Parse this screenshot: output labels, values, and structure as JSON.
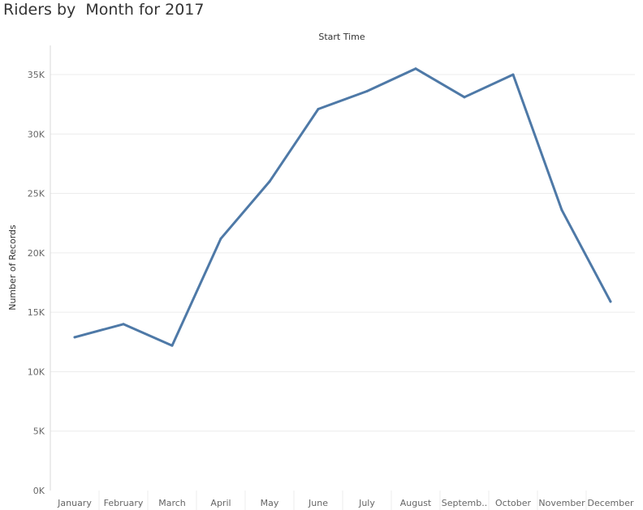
{
  "chart_data": {
    "type": "line",
    "title": "Riders by  Month for 2017",
    "column_header": "Start Time",
    "ylabel": "Number of Records",
    "xlabel": "",
    "categories": [
      "January",
      "February",
      "March",
      "April",
      "May",
      "June",
      "July",
      "August",
      "September",
      "October",
      "November",
      "December"
    ],
    "category_labels": [
      "January",
      "February",
      "March",
      "April",
      "May",
      "June",
      "July",
      "August",
      "Septemb..",
      "October",
      "November",
      "December"
    ],
    "series": [
      {
        "values": [
          12900,
          14000,
          12200,
          21200,
          26000,
          32100,
          33600,
          35500,
          33100,
          35000,
          23600,
          15900
        ]
      }
    ],
    "ylim": [
      0,
      36500
    ],
    "yticks": [
      0,
      5000,
      10000,
      15000,
      20000,
      25000,
      30000,
      35000
    ],
    "ytick_labels": [
      "0K",
      "5K",
      "10K",
      "15K",
      "20K",
      "25K",
      "30K",
      "35K"
    ],
    "grid": true,
    "colors": {
      "line": "#4e79a7",
      "grid": "#ececec",
      "axis": "#d9d9d9"
    }
  }
}
